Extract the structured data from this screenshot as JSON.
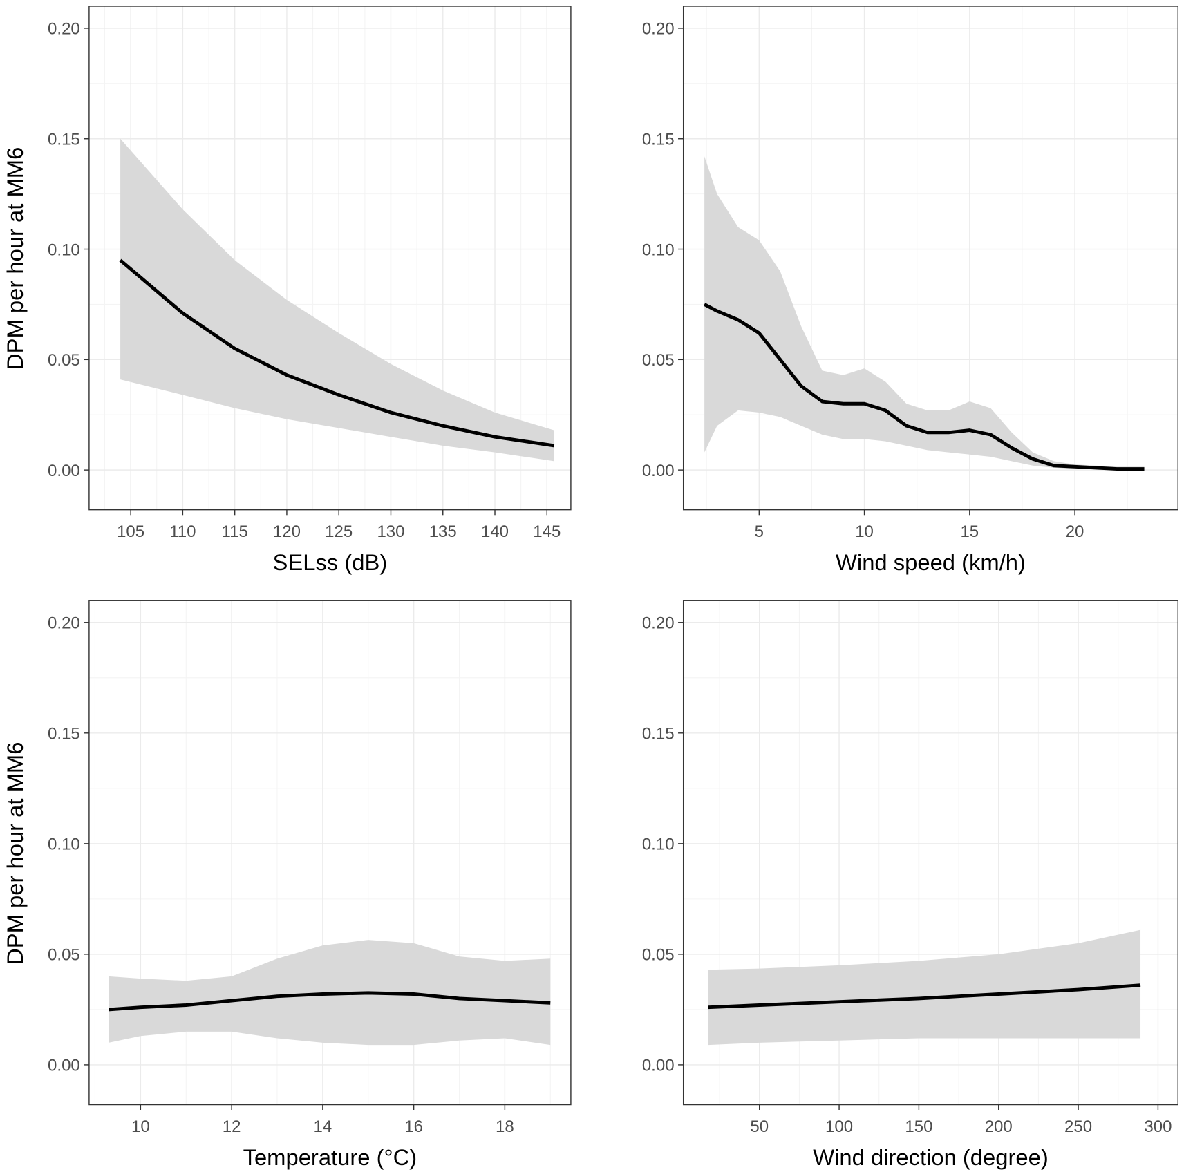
{
  "chart_data": [
    {
      "type": "line",
      "id": "selss",
      "xlabel": "SELss (dB)",
      "ylabel": "DPM per hour at MM6",
      "xlim": [
        101,
        147.3
      ],
      "ylim": [
        -0.018,
        0.21
      ],
      "xticks": [
        105,
        110,
        115,
        120,
        125,
        130,
        135,
        140,
        145
      ],
      "xtick_labels": [
        "105",
        "110",
        "115",
        "120",
        "125",
        "130",
        "135",
        "140",
        "145"
      ],
      "yticks": [
        0,
        0.05,
        0.1,
        0.15,
        0.2
      ],
      "ytick_labels": [
        "0.00",
        "0.05",
        "0.10",
        "0.15",
        "0.20"
      ],
      "grid": true,
      "x": [
        104,
        110,
        115,
        120,
        125,
        130,
        135,
        140,
        145.7
      ],
      "fit": [
        0.095,
        0.071,
        0.055,
        0.043,
        0.034,
        0.026,
        0.02,
        0.015,
        0.011
      ],
      "lower": [
        0.041,
        0.034,
        0.028,
        0.023,
        0.019,
        0.015,
        0.011,
        0.008,
        0.004
      ],
      "upper": [
        0.15,
        0.118,
        0.095,
        0.077,
        0.062,
        0.048,
        0.036,
        0.026,
        0.018
      ]
    },
    {
      "type": "line",
      "id": "windspeed",
      "xlabel": "Wind speed (km/h)",
      "ylabel": "",
      "xlim": [
        1.4,
        24.9
      ],
      "ylim": [
        -0.018,
        0.21
      ],
      "xticks": [
        5,
        10,
        15,
        20
      ],
      "xtick_labels": [
        "5",
        "10",
        "15",
        "20"
      ],
      "yticks": [
        0,
        0.05,
        0.1,
        0.15,
        0.2
      ],
      "ytick_labels": [
        "0.00",
        "0.05",
        "0.10",
        "0.15",
        "0.20"
      ],
      "grid": true,
      "x": [
        2.4,
        3,
        4,
        5,
        6,
        7,
        8,
        9,
        10,
        11,
        12,
        13,
        14,
        15,
        16,
        17,
        18,
        19,
        20,
        22,
        23.3
      ],
      "fit": [
        0.075,
        0.072,
        0.068,
        0.062,
        0.05,
        0.038,
        0.031,
        0.03,
        0.03,
        0.027,
        0.02,
        0.017,
        0.017,
        0.018,
        0.016,
        0.01,
        0.005,
        0.002,
        0.0015,
        0.0005,
        0.0005
      ],
      "lower": [
        0.008,
        0.02,
        0.027,
        0.026,
        0.024,
        0.02,
        0.016,
        0.014,
        0.014,
        0.013,
        0.011,
        0.009,
        0.008,
        0.007,
        0.006,
        0.004,
        0.002,
        0.001,
        0.0005,
        0,
        0
      ],
      "upper": [
        0.142,
        0.125,
        0.11,
        0.104,
        0.09,
        0.065,
        0.045,
        0.043,
        0.046,
        0.04,
        0.03,
        0.027,
        0.027,
        0.031,
        0.028,
        0.017,
        0.008,
        0.004,
        0.0025,
        0.0015,
        0.0015
      ]
    },
    {
      "type": "line",
      "id": "temperature",
      "xlabel": "Temperature (°C)",
      "ylabel": "DPM per hour at MM6",
      "xlim": [
        8.87,
        19.45
      ],
      "ylim": [
        -0.018,
        0.21
      ],
      "xticks": [
        10,
        12,
        14,
        16,
        18
      ],
      "xtick_labels": [
        "10",
        "12",
        "14",
        "16",
        "18"
      ],
      "yticks": [
        0,
        0.05,
        0.1,
        0.15,
        0.2
      ],
      "ytick_labels": [
        "0.00",
        "0.05",
        "0.10",
        "0.15",
        "0.20"
      ],
      "grid": true,
      "x": [
        9.3,
        10,
        11,
        12,
        13,
        14,
        15,
        16,
        17,
        18,
        19
      ],
      "fit": [
        0.025,
        0.026,
        0.027,
        0.029,
        0.031,
        0.032,
        0.0325,
        0.032,
        0.03,
        0.029,
        0.028
      ],
      "lower": [
        0.01,
        0.013,
        0.015,
        0.015,
        0.012,
        0.01,
        0.009,
        0.009,
        0.011,
        0.012,
        0.009
      ],
      "upper": [
        0.04,
        0.039,
        0.038,
        0.04,
        0.048,
        0.054,
        0.0565,
        0.055,
        0.049,
        0.047,
        0.048
      ]
    },
    {
      "type": "line",
      "id": "winddirection",
      "xlabel": "Wind direction (degree)",
      "ylabel": "",
      "xlim": [
        2.3,
        312.5
      ],
      "ylim": [
        -0.018,
        0.21
      ],
      "xticks": [
        50,
        100,
        150,
        200,
        250,
        300
      ],
      "xtick_labels": [
        "50",
        "100",
        "150",
        "200",
        "250",
        "300"
      ],
      "yticks": [
        0,
        0.05,
        0.1,
        0.15,
        0.2
      ],
      "ytick_labels": [
        "0.00",
        "0.05",
        "0.10",
        "0.15",
        "0.20"
      ],
      "grid": true,
      "x": [
        18,
        50,
        100,
        150,
        200,
        250,
        289
      ],
      "fit": [
        0.026,
        0.027,
        0.0285,
        0.03,
        0.032,
        0.034,
        0.036
      ],
      "lower": [
        0.009,
        0.01,
        0.011,
        0.012,
        0.012,
        0.012,
        0.012
      ],
      "upper": [
        0.043,
        0.0435,
        0.045,
        0.047,
        0.05,
        0.055,
        0.061
      ]
    }
  ]
}
